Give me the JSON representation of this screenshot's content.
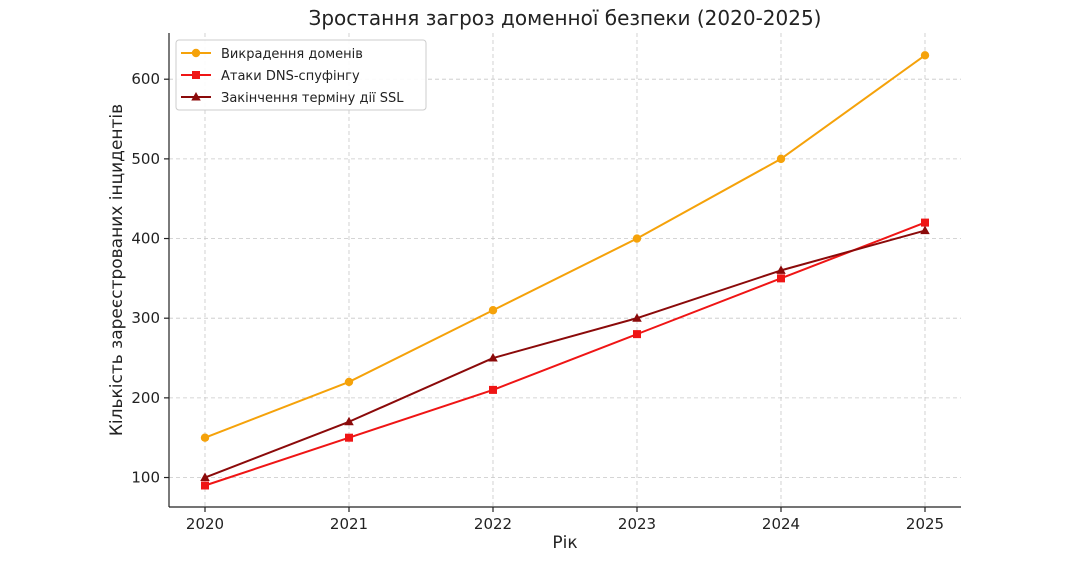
{
  "chart_data": {
    "type": "line",
    "title": "Зростання загроз доменної безпеки (2020-2025)",
    "xlabel": "Рік",
    "ylabel": "Кількість зареєстрованих інцидентів",
    "x": [
      2020,
      2021,
      2022,
      2023,
      2024,
      2025
    ],
    "x_tick_labels": [
      "2020",
      "2021",
      "2022",
      "2023",
      "2024",
      "2025"
    ],
    "y_ticks": [
      100,
      200,
      300,
      400,
      500,
      600
    ],
    "y_tick_labels": [
      "100",
      "200",
      "300",
      "400",
      "500",
      "600"
    ],
    "xlim": [
      2019.75,
      2025.25
    ],
    "ylim": [
      63,
      658
    ],
    "grid": true,
    "legend_position": "top-left",
    "series": [
      {
        "name": "Викрадення доменів",
        "values": [
          150,
          220,
          310,
          400,
          500,
          630
        ],
        "color": "#f5a20a",
        "marker": "circle"
      },
      {
        "name": "Атаки DNS-спуфінгу",
        "values": [
          90,
          150,
          210,
          280,
          350,
          420
        ],
        "color": "#ef1515",
        "marker": "square"
      },
      {
        "name": "Закінчення терміну дії SSL",
        "values": [
          100,
          170,
          250,
          300,
          360,
          410
        ],
        "color": "#8b0a0a",
        "marker": "triangle"
      }
    ]
  }
}
